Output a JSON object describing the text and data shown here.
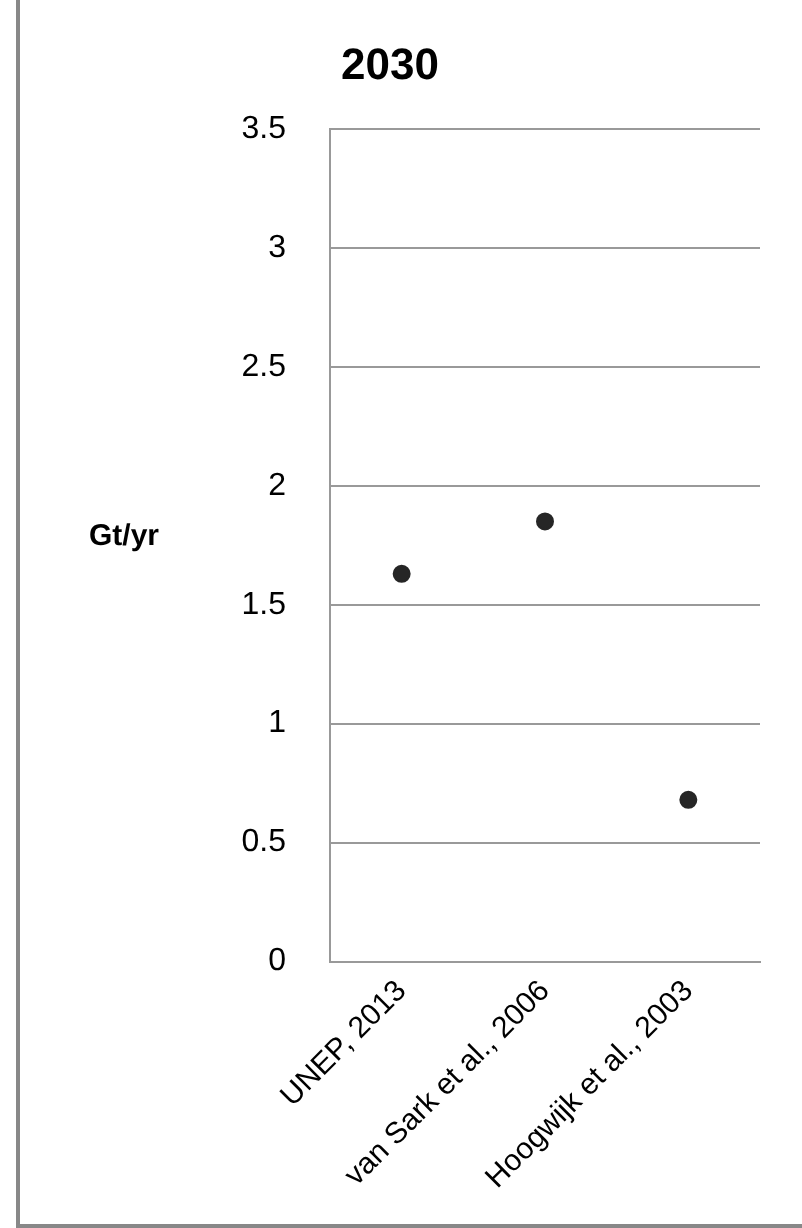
{
  "chart_data": {
    "type": "scatter",
    "title": "2030",
    "ylabel": "Gt/yr",
    "categories": [
      "UNEP, 2013",
      "van Sark et al., 2006",
      "Hoogwijk et al., 2003"
    ],
    "values": [
      1.63,
      1.85,
      0.68
    ],
    "color": "#262626",
    "ylim": [
      0,
      3.5
    ],
    "yticks": [
      0,
      0.5,
      1,
      1.5,
      2,
      2.5,
      3,
      3.5
    ],
    "grid": "y",
    "marker": "circle"
  }
}
